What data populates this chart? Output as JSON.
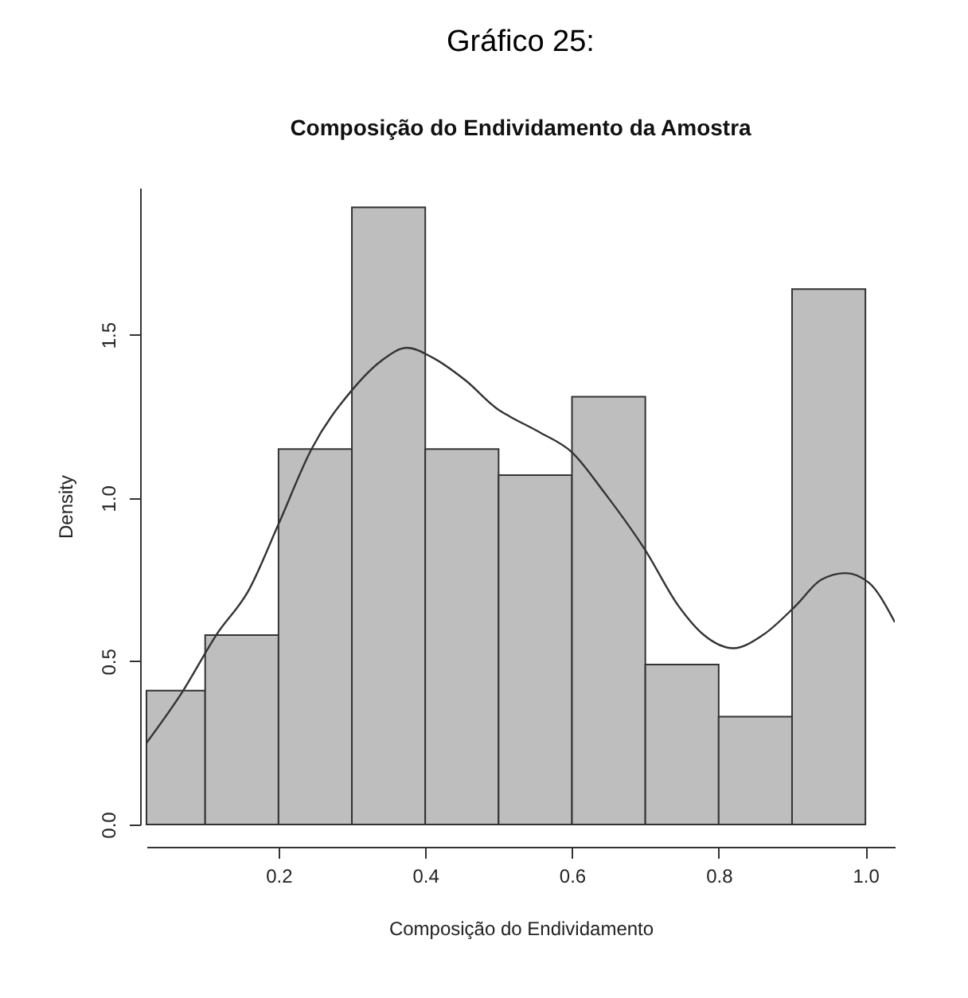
{
  "chart_data": {
    "type": "histogram",
    "title": "Gráfico 25:",
    "subtitle": "Composição do Endividamento da Amostra",
    "xlabel": "Composição do Endividamento",
    "ylabel": "Density",
    "bins": [
      0.02,
      0.1,
      0.2,
      0.3,
      0.4,
      0.5,
      0.6,
      0.7,
      0.8,
      0.9,
      1.0
    ],
    "series": [
      {
        "color": "#bebebe",
        "values": [
          0.41,
          0.58,
          1.15,
          1.89,
          1.15,
          1.07,
          1.31,
          0.49,
          0.33,
          1.64
        ]
      },
      {
        "type": "line",
        "color": "#333333",
        "x": [
          0.02,
          0.07,
          0.115,
          0.16,
          0.2,
          0.245,
          0.3,
          0.34,
          0.375,
          0.41,
          0.455,
          0.5,
          0.515,
          0.557,
          0.6,
          0.643,
          0.7,
          0.745,
          0.78,
          0.82,
          0.86,
          0.905,
          0.94,
          0.973,
          1.005,
          1.04
        ],
        "values": [
          0.25,
          0.41,
          0.58,
          0.72,
          0.92,
          1.15,
          1.33,
          1.42,
          1.46,
          1.43,
          1.36,
          1.27,
          1.25,
          1.2,
          1.14,
          1.02,
          0.84,
          0.67,
          0.58,
          0.54,
          0.58,
          0.67,
          0.75,
          0.77,
          0.74,
          0.62
        ]
      }
    ],
    "xlim": [
      0.02,
      1.04
    ],
    "xticks": [
      0.2,
      0.4,
      0.6,
      0.8,
      {
        "value": 1,
        "label": "1.0"
      }
    ],
    "ylim": [
      0,
      1.95
    ],
    "yticks": [
      {
        "value": 0,
        "label": "0.0"
      },
      0.5,
      {
        "value": 1,
        "label": "1.0"
      },
      1.5
    ],
    "grid": false
  }
}
